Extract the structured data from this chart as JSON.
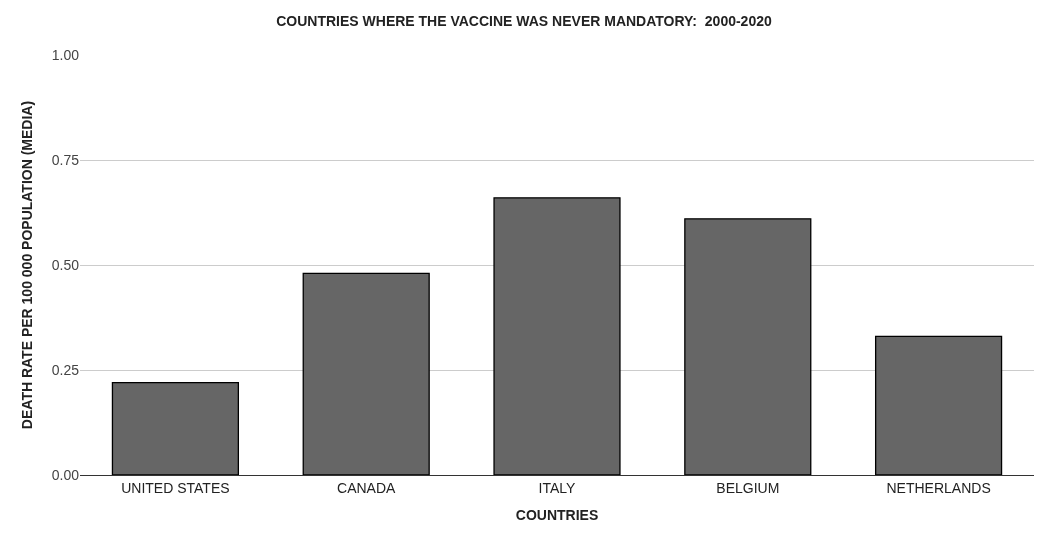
{
  "chart_data": {
    "type": "bar",
    "title": "COUNTRIES WHERE THE VACCINE WAS NEVER MANDATORY:  2000-2020",
    "xlabel": "COUNTRIES",
    "ylabel": "DEATH RATE PER 100 000 POPULATION (MEDIA)",
    "categories": [
      "UNITED STATES",
      "CANADA",
      "ITALY",
      "BELGIUM",
      "NETHERLANDS"
    ],
    "values": [
      0.22,
      0.48,
      0.66,
      0.61,
      0.33
    ],
    "color": "#666666",
    "ylim": [
      0,
      1
    ],
    "yticks": [
      {
        "value": 0,
        "label": "0.00"
      },
      {
        "value": 0.25,
        "label": "0.25"
      },
      {
        "value": 0.5,
        "label": "0.50"
      },
      {
        "value": 0.75,
        "label": "0.75"
      },
      {
        "value": 1,
        "label": "1.00"
      }
    ],
    "grid": "y",
    "legend": false
  }
}
